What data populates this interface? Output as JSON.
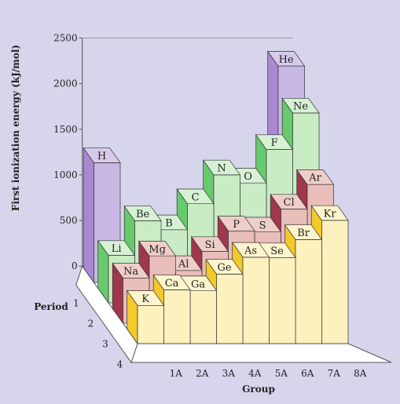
{
  "chart_data": {
    "type": "bar3d",
    "ylabel": "First ionization energy (kJ/mol)",
    "xlabel": "Group",
    "zlabel": "Period",
    "ylim": [
      0,
      2500
    ],
    "yticks": [
      "0",
      "500",
      "1000",
      "1500",
      "2000",
      "2500"
    ],
    "groups": [
      "1A",
      "2A",
      "3A",
      "4A",
      "5A",
      "6A",
      "7A",
      "8A"
    ],
    "periods": [
      "1",
      "2",
      "3",
      "4"
    ],
    "colors": {
      "background": "#d6d5ec",
      "period1": "#c9b8e4",
      "period2": "#c9ecc5",
      "period3": "#e9bdb8",
      "period4": "#fdf1bd"
    },
    "elements": [
      {
        "symbol": "H",
        "group": "1A",
        "period": "1",
        "value": 1312
      },
      {
        "symbol": "He",
        "group": "8A",
        "period": "1",
        "value": 2372
      },
      {
        "symbol": "Li",
        "group": "1A",
        "period": "2",
        "value": 520
      },
      {
        "symbol": "Be",
        "group": "2A",
        "period": "2",
        "value": 899
      },
      {
        "symbol": "B",
        "group": "3A",
        "period": "2",
        "value": 801
      },
      {
        "symbol": "C",
        "group": "4A",
        "period": "2",
        "value": 1086
      },
      {
        "symbol": "N",
        "group": "5A",
        "period": "2",
        "value": 1402
      },
      {
        "symbol": "O",
        "group": "6A",
        "period": "2",
        "value": 1314
      },
      {
        "symbol": "F",
        "group": "7A",
        "period": "2",
        "value": 1681
      },
      {
        "symbol": "Ne",
        "group": "8A",
        "period": "2",
        "value": 2081
      },
      {
        "symbol": "Na",
        "group": "1A",
        "period": "3",
        "value": 496
      },
      {
        "symbol": "Mg",
        "group": "2A",
        "period": "3",
        "value": 738
      },
      {
        "symbol": "Al",
        "group": "3A",
        "period": "3",
        "value": 578
      },
      {
        "symbol": "Si",
        "group": "4A",
        "period": "3",
        "value": 787
      },
      {
        "symbol": "P",
        "group": "5A",
        "period": "3",
        "value": 1012
      },
      {
        "symbol": "S",
        "group": "6A",
        "period": "3",
        "value": 1000
      },
      {
        "symbol": "Cl",
        "group": "7A",
        "period": "3",
        "value": 1251
      },
      {
        "symbol": "Ar",
        "group": "8A",
        "period": "3",
        "value": 1521
      },
      {
        "symbol": "K",
        "group": "1A",
        "period": "4",
        "value": 419
      },
      {
        "symbol": "Ca",
        "group": "2A",
        "period": "4",
        "value": 590
      },
      {
        "symbol": "Ga",
        "group": "3A",
        "period": "4",
        "value": 579
      },
      {
        "symbol": "Ge",
        "group": "4A",
        "period": "4",
        "value": 762
      },
      {
        "symbol": "As",
        "group": "5A",
        "period": "4",
        "value": 947
      },
      {
        "symbol": "Se",
        "group": "6A",
        "period": "4",
        "value": 941
      },
      {
        "symbol": "Br",
        "group": "7A",
        "period": "4",
        "value": 1140
      },
      {
        "symbol": "Kr",
        "group": "8A",
        "period": "4",
        "value": 1351
      }
    ]
  }
}
